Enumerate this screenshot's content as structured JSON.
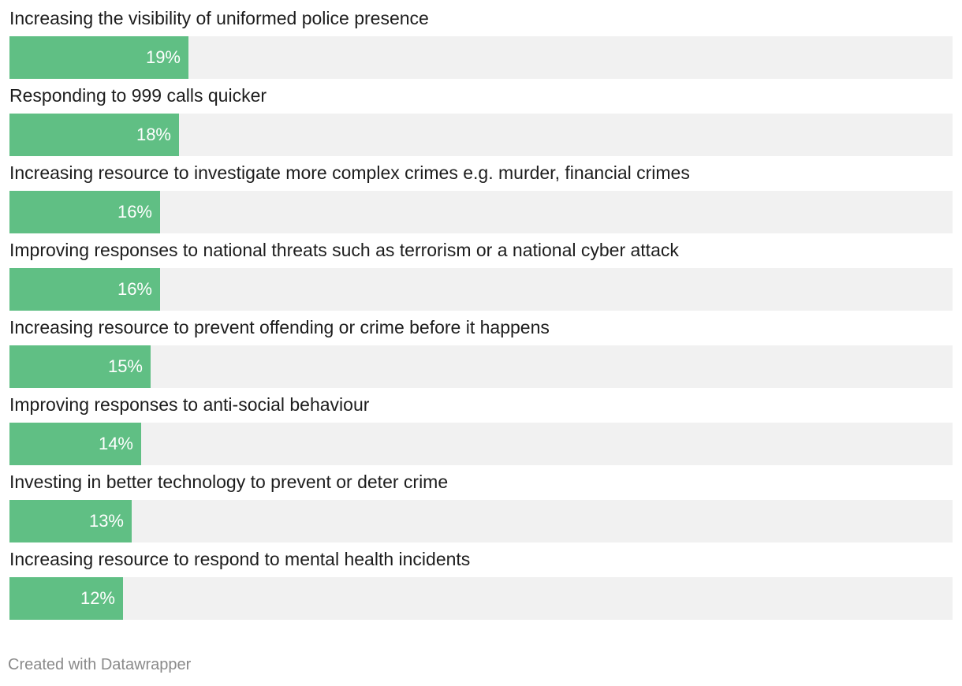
{
  "chart_data": {
    "type": "bar",
    "orientation": "horizontal",
    "categories": [
      "Increasing the visibility of uniformed police presence",
      "Responding to 999 calls quicker",
      "Increasing resource to investigate more complex crimes e.g. murder, financial crimes",
      "Improving responses to national threats such as terrorism or a national cyber attack",
      "Increasing resource to prevent offending or crime before it happens",
      "Improving responses to anti-social behaviour",
      "Investing in better technology to prevent or deter crime",
      "Increasing resource to respond to mental health incidents"
    ],
    "values": [
      19,
      18,
      16,
      16,
      15,
      14,
      13,
      12
    ],
    "value_labels": [
      "19%",
      "18%",
      "16%",
      "16%",
      "15%",
      "14%",
      "13%",
      "12%"
    ],
    "unit": "%",
    "xlim": [
      0,
      100
    ],
    "colors": {
      "bar": "#60bf84",
      "track": "#f1f1f1",
      "value_text": "#ffffff"
    }
  },
  "footer": {
    "credit": "Created with Datawrapper"
  }
}
